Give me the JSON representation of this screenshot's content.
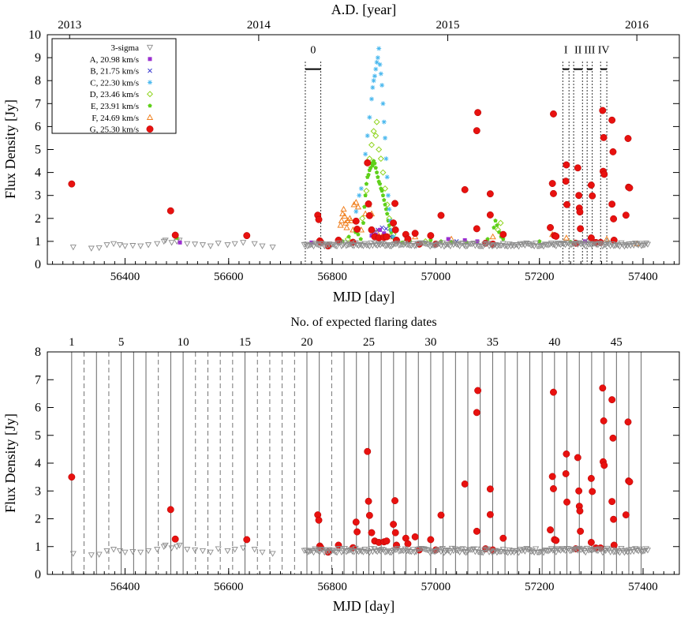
{
  "chart_data": [
    {
      "type": "scatter",
      "title": "",
      "top_axis_label": "A.D. [year]",
      "top_ticks": [
        {
          "label": "2013",
          "mjd": 56293
        },
        {
          "label": "2014",
          "mjd": 56658
        },
        {
          "label": "2015",
          "mjd": 57023
        },
        {
          "label": "2016",
          "mjd": 57388
        }
      ],
      "xlabel": "MJD [day]",
      "ylabel": "Flux Density [Jy]",
      "xlim": [
        56250,
        57470
      ],
      "ylim": [
        0,
        10
      ],
      "xticks": [
        56400,
        56600,
        56800,
        57000,
        57200,
        57400
      ],
      "yticks": [
        0,
        1,
        2,
        3,
        4,
        5,
        6,
        7,
        8,
        9,
        10
      ],
      "legend_position": "top-left",
      "legend": [
        {
          "label": "3-sigma",
          "marker": "open-triangle-down",
          "color": "#8c8c8c"
        },
        {
          "label": "A,  20.98 km/s",
          "marker": "filled-square",
          "color": "#9b30d0"
        },
        {
          "label": "B,  21.75 km/s",
          "marker": "x",
          "color": "#3b3bd1"
        },
        {
          "label": "C,  22.30 km/s",
          "marker": "star",
          "color": "#47b7ee"
        },
        {
          "label": "D,  23.46 km/s",
          "marker": "open-diamond",
          "color": "#8fd41e"
        },
        {
          "label": "E,  23.91 km/s",
          "marker": "filled-pentagon",
          "color": "#5fd01a"
        },
        {
          "label": "F,  24.69 km/s",
          "marker": "open-triangle-up",
          "color": "#f08020"
        },
        {
          "label": "G,  25.30 km/s",
          "marker": "filled-circle",
          "color": "#e8110f"
        }
      ],
      "flare_windows": [
        {
          "label": "0",
          "start": 56748,
          "end": 56778
        },
        {
          "label": "I",
          "start": 57245,
          "end": 57257
        },
        {
          "label": "II",
          "start": 57266,
          "end": 57283
        },
        {
          "label": "III",
          "start": 57292,
          "end": 57302
        },
        {
          "label": "IV",
          "start": 57318,
          "end": 57330
        }
      ]
    },
    {
      "type": "scatter",
      "title": "",
      "top_axis_label": "No. of expected flaring dates",
      "top_ticks": [
        {
          "label": "1",
          "n": 1
        },
        {
          "label": "5",
          "n": 5
        },
        {
          "label": "10",
          "n": 10
        },
        {
          "label": "15",
          "n": 15
        },
        {
          "label": "20",
          "n": 20
        },
        {
          "label": "25",
          "n": 25
        },
        {
          "label": "30",
          "n": 30
        },
        {
          "label": "35",
          "n": 35
        },
        {
          "label": "40",
          "n": 40
        },
        {
          "label": "45",
          "n": 45
        }
      ],
      "period_days": 23.9,
      "first_date_mjd": 56297,
      "n_dates": 47,
      "dashed_dates": [
        2,
        4,
        8,
        11,
        12,
        13,
        14,
        16,
        17,
        18,
        19,
        22
      ],
      "xlabel": "MJD [day]",
      "ylabel": "Flux Density [Jy]",
      "xlim": [
        56250,
        57470
      ],
      "ylim": [
        0,
        8
      ],
      "xticks": [
        56400,
        56600,
        56800,
        57000,
        57200,
        57400
      ],
      "yticks": [
        0,
        1,
        2,
        3,
        4,
        5,
        6,
        7,
        8
      ]
    }
  ],
  "series": {
    "G": [
      [
        56297,
        3.5
      ],
      [
        56488,
        2.33
      ],
      [
        56497,
        1.27
      ],
      [
        56635,
        1.25
      ],
      [
        56772,
        2.14
      ],
      [
        56774,
        1.95
      ],
      [
        56776,
        1.02
      ],
      [
        56778,
        0.96
      ],
      [
        56792,
        0.8
      ],
      [
        56812,
        1.05
      ],
      [
        56840,
        0.96
      ],
      [
        56846,
        1.88
      ],
      [
        56848,
        1.53
      ],
      [
        56868,
        4.42
      ],
      [
        56870,
        2.63
      ],
      [
        56872,
        2.12
      ],
      [
        56876,
        1.5
      ],
      [
        56882,
        1.2
      ],
      [
        56890,
        1.15
      ],
      [
        56900,
        1.17
      ],
      [
        56905,
        1.2
      ],
      [
        56918,
        1.8
      ],
      [
        56921,
        2.65
      ],
      [
        56922,
        1.5
      ],
      [
        56924,
        1.05
      ],
      [
        56942,
        1.3
      ],
      [
        56946,
        1.1
      ],
      [
        56960,
        1.35
      ],
      [
        56968,
        0.88
      ],
      [
        56990,
        1.25
      ],
      [
        57000,
        0.88
      ],
      [
        57010,
        2.13
      ],
      [
        57056,
        3.25
      ],
      [
        57081,
        6.61
      ],
      [
        57079,
        5.82
      ],
      [
        57079,
        1.55
      ],
      [
        57096,
        0.92
      ],
      [
        57105,
        3.07
      ],
      [
        57105,
        2.15
      ],
      [
        57110,
        0.88
      ],
      [
        57130,
        1.3
      ],
      [
        57221,
        1.6
      ],
      [
        57227,
        6.55
      ],
      [
        57225,
        3.52
      ],
      [
        57227,
        3.08
      ],
      [
        57229,
        1.25
      ],
      [
        57232,
        1.22
      ],
      [
        57251,
        3.62
      ],
      [
        57253,
        2.6
      ],
      [
        57252,
        4.33
      ],
      [
        57270,
        0.92
      ],
      [
        57274,
        4.2
      ],
      [
        57276,
        3.0
      ],
      [
        57277,
        2.45
      ],
      [
        57278,
        2.28
      ],
      [
        57279,
        1.55
      ],
      [
        57300,
        3.45
      ],
      [
        57302,
        2.98
      ],
      [
        57300,
        1.15
      ],
      [
        57309,
        0.95
      ],
      [
        57318,
        0.95
      ],
      [
        57322,
        6.7
      ],
      [
        57324,
        5.52
      ],
      [
        57323,
        4.05
      ],
      [
        57325,
        3.92
      ],
      [
        57340,
        6.28
      ],
      [
        57342,
        4.9
      ],
      [
        57340,
        2.62
      ],
      [
        57343,
        1.98
      ],
      [
        57344,
        1.05
      ],
      [
        57367,
        2.14
      ],
      [
        57371,
        5.48
      ],
      [
        57372,
        3.36
      ],
      [
        57374,
        3.33
      ]
    ],
    "E": [
      [
        56500,
        1.15
      ],
      [
        56820,
        1.0
      ],
      [
        56832,
        1.2
      ],
      [
        56845,
        1.4
      ],
      [
        56850,
        1.3
      ],
      [
        56855,
        1.1
      ],
      [
        56860,
        1.8
      ],
      [
        56862,
        2.5
      ],
      [
        56864,
        3.0
      ],
      [
        56866,
        3.5
      ],
      [
        56868,
        3.8
      ],
      [
        56870,
        3.9
      ],
      [
        56872,
        4.1
      ],
      [
        56874,
        4.2
      ],
      [
        56876,
        4.4
      ],
      [
        56878,
        4.3
      ],
      [
        56880,
        4.5
      ],
      [
        56882,
        4.4
      ],
      [
        56884,
        4.2
      ],
      [
        56886,
        4.0
      ],
      [
        56888,
        3.8
      ],
      [
        56890,
        3.6
      ],
      [
        56892,
        3.5
      ],
      [
        56894,
        3.3
      ],
      [
        56896,
        3.2
      ],
      [
        56898,
        3.0
      ],
      [
        56900,
        2.8
      ],
      [
        56902,
        2.6
      ],
      [
        56904,
        2.4
      ],
      [
        56906,
        2.2
      ],
      [
        56908,
        1.9
      ],
      [
        56910,
        1.7
      ],
      [
        56912,
        1.5
      ],
      [
        56914,
        1.4
      ],
      [
        56916,
        1.2
      ],
      [
        56920,
        1.1
      ],
      [
        56925,
        1.0
      ],
      [
        56935,
        0.95
      ],
      [
        56950,
        1.0
      ],
      [
        56970,
        0.95
      ],
      [
        56990,
        1.05
      ],
      [
        57010,
        1.0
      ],
      [
        57030,
        0.98
      ],
      [
        57060,
        0.95
      ],
      [
        57100,
        1.1
      ],
      [
        57112,
        1.6
      ],
      [
        57115,
        1.9
      ],
      [
        57118,
        1.7
      ],
      [
        57122,
        1.4
      ],
      [
        57126,
        1.2
      ],
      [
        57130,
        1.1
      ],
      [
        57200,
        1.0
      ],
      [
        57260,
        0.98
      ]
    ],
    "D": [
      [
        56830,
        1.1
      ],
      [
        56846,
        1.5
      ],
      [
        56858,
        2.0
      ],
      [
        56866,
        3.2
      ],
      [
        56872,
        4.6
      ],
      [
        56876,
        5.2
      ],
      [
        56880,
        5.8
      ],
      [
        56884,
        5.6
      ],
      [
        56886,
        6.2
      ],
      [
        56890,
        5.0
      ],
      [
        56894,
        4.6
      ],
      [
        56898,
        4.0
      ],
      [
        56902,
        3.3
      ],
      [
        56906,
        2.6
      ],
      [
        56910,
        2.0
      ],
      [
        56914,
        1.6
      ],
      [
        56918,
        1.3
      ],
      [
        56924,
        1.0
      ],
      [
        56940,
        0.95
      ],
      [
        56980,
        1.0
      ],
      [
        57120,
        1.5
      ],
      [
        57125,
        1.8
      ]
    ],
    "C": [
      [
        56846,
        2.3
      ],
      [
        56852,
        3.0
      ],
      [
        56856,
        3.3
      ],
      [
        56864,
        4.8
      ],
      [
        56868,
        5.6
      ],
      [
        56872,
        6.4
      ],
      [
        56876,
        7.2
      ],
      [
        56878,
        7.7
      ],
      [
        56880,
        8.0
      ],
      [
        56882,
        8.2
      ],
      [
        56884,
        8.5
      ],
      [
        56886,
        8.8
      ],
      [
        56888,
        9.0
      ],
      [
        56890,
        9.4
      ],
      [
        56892,
        8.7
      ],
      [
        56894,
        8.3
      ],
      [
        56896,
        7.8
      ],
      [
        56898,
        7.0
      ],
      [
        56900,
        6.2
      ],
      [
        56902,
        5.5
      ],
      [
        56904,
        4.6
      ],
      [
        56906,
        3.8
      ],
      [
        56908,
        3.0
      ],
      [
        56910,
        2.4
      ],
      [
        56912,
        1.9
      ],
      [
        56914,
        1.5
      ],
      [
        56918,
        1.2
      ],
      [
        56925,
        1.0
      ]
    ],
    "F": [
      [
        56816,
        1.7
      ],
      [
        56818,
        1.9
      ],
      [
        56820,
        2.2
      ],
      [
        56822,
        2.4
      ],
      [
        56824,
        2.1
      ],
      [
        56826,
        1.8
      ],
      [
        56828,
        1.6
      ],
      [
        56830,
        1.9
      ],
      [
        56834,
        2.0
      ],
      [
        56836,
        1.9
      ],
      [
        56840,
        1.5
      ],
      [
        56842,
        2.6
      ],
      [
        56846,
        2.7
      ],
      [
        56850,
        2.5
      ],
      [
        56856,
        1.5
      ],
      [
        56864,
        2.2
      ],
      [
        56870,
        2.6
      ],
      [
        56876,
        2.2
      ],
      [
        56886,
        1.4
      ],
      [
        56898,
        1.3
      ],
      [
        56910,
        1.2
      ],
      [
        56960,
        1.2
      ],
      [
        57030,
        1.1
      ],
      [
        57110,
        1.2
      ],
      [
        57225,
        1.3
      ],
      [
        57252,
        1.15
      ],
      [
        57330,
        1.1
      ],
      [
        57388,
        0.9
      ]
    ],
    "A": [
      [
        56506,
        0.95
      ],
      [
        56760,
        0.95
      ],
      [
        56876,
        1.25
      ],
      [
        56884,
        1.3
      ],
      [
        56892,
        1.5
      ],
      [
        56900,
        1.35
      ],
      [
        57024,
        1.1
      ],
      [
        57056,
        1.05
      ],
      [
        57080,
        1.0
      ],
      [
        57288,
        1.0
      ]
    ],
    "B": [
      [
        56880,
        1.4
      ],
      [
        56888,
        1.5
      ],
      [
        56896,
        1.6
      ],
      [
        56904,
        1.55
      ],
      [
        56912,
        1.2
      ],
      [
        57040,
        1.0
      ]
    ],
    "U": [
      [
        56300,
        0.75
      ],
      [
        56335,
        0.7
      ],
      [
        56350,
        0.72
      ],
      [
        56365,
        0.85
      ],
      [
        56378,
        0.9
      ],
      [
        56390,
        0.85
      ],
      [
        56400,
        0.8
      ],
      [
        56415,
        0.82
      ],
      [
        56430,
        0.8
      ],
      [
        56445,
        0.85
      ],
      [
        56462,
        0.9
      ],
      [
        56475,
        1.0
      ],
      [
        56478,
        1.05
      ],
      [
        56490,
        0.95
      ],
      [
        56500,
        1.0
      ],
      [
        56505,
        1.05
      ],
      [
        56520,
        0.9
      ],
      [
        56535,
        0.88
      ],
      [
        56550,
        0.85
      ],
      [
        56565,
        0.8
      ],
      [
        56580,
        0.92
      ],
      [
        56598,
        0.85
      ],
      [
        56612,
        0.9
      ],
      [
        56628,
        0.95
      ],
      [
        56650,
        0.9
      ],
      [
        56665,
        0.8
      ],
      [
        56685,
        0.75
      ]
    ]
  },
  "colors": {
    "A": "#9b30d0",
    "B": "#3b3bd1",
    "C": "#47b7ee",
    "D": "#8fd41e",
    "E": "#5fd01a",
    "F": "#f08020",
    "G": "#e8110f",
    "U": "#8c8c8c"
  }
}
